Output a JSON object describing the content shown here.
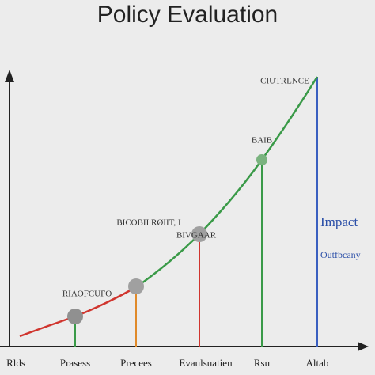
{
  "header": {
    "title": "Policy Evaluation"
  },
  "annotations": [
    {
      "label": "CIUTRLNCE"
    },
    {
      "label": "BAIB"
    },
    {
      "label": "BICOBII RØIIT, I"
    },
    {
      "label": "BIVGAAR"
    },
    {
      "label": "RIAOFCUFO"
    },
    {
      "label": "Impact"
    },
    {
      "label": "Outfbcany"
    }
  ],
  "x_labels": [
    "Rlds",
    "Prasess",
    "Precees",
    "Evaulsuatien",
    "Rsu",
    "Altab"
  ]
}
